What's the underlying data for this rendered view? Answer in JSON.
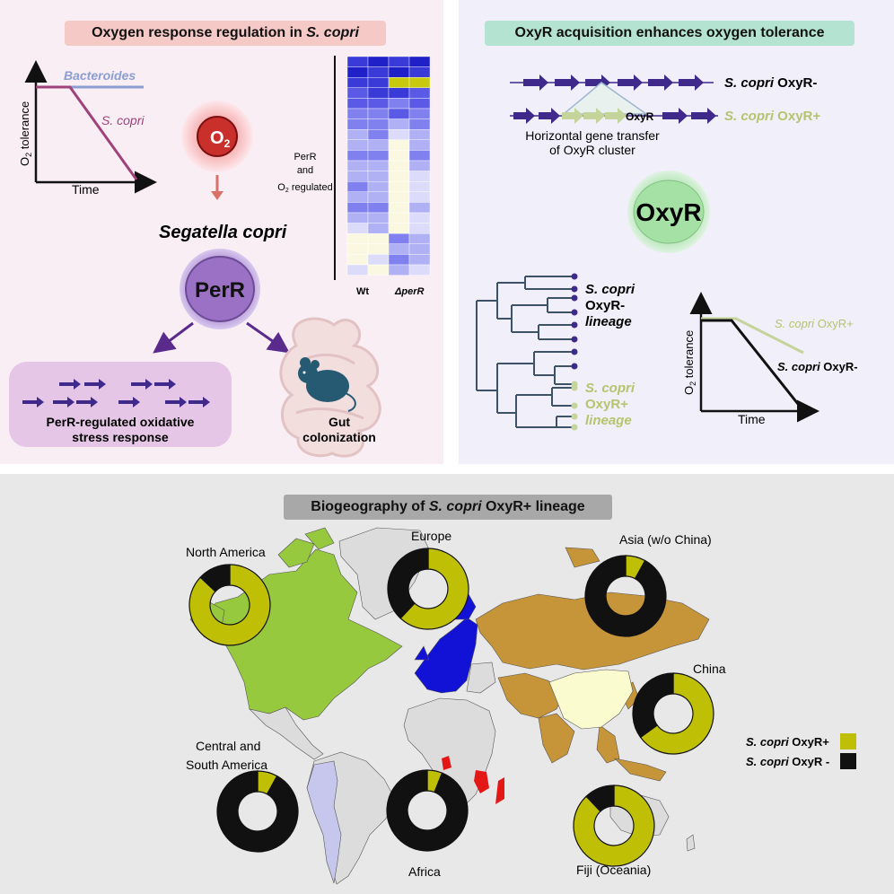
{
  "panel_a": {
    "title": "Oxygen response regulation in ",
    "title_italic": "S. copri",
    "graph": {
      "ylabel": "O2 tolerance",
      "xlabel": "Time",
      "line1": "Bacteroides",
      "line2": "S. copri"
    },
    "o2_label": "O2",
    "organism": "Segatella copri",
    "regulator": "PerR",
    "heatmap_label_1": "PerR",
    "heatmap_label_2": "and",
    "heatmap_label_3": "O2 regulated",
    "heatmap_col_1": "Wt",
    "heatmap_col_2": "ΔperR",
    "stress_box_line1": "PerR-regulated oxidative",
    "stress_box_line2": "stress response",
    "gut_line1": "Gut",
    "gut_line2": "colonization"
  },
  "panel_b": {
    "title": "OxyR acquisition enhances oxygen tolerance",
    "operon_minus": "S. copri OxyR-",
    "operon_plus": "S. copri OxyR+",
    "oxyr_gene": "OxyR",
    "hgt_line1": "Horizontal gene transfer",
    "hgt_line2": "of OxyR cluster",
    "oxyr_circle": "OxyR",
    "tree_minus_1": "S. copri",
    "tree_minus_2": "OxyR-",
    "tree_minus_3": "lineage",
    "tree_plus_1": "S. copri",
    "tree_plus_2": "OxyR+",
    "tree_plus_3": "lineage",
    "graph": {
      "ylabel": "O2 tolerance",
      "xlabel": "Time",
      "line_plus": "S. copri OxyR+",
      "line_minus": "S. copri OxyR-"
    }
  },
  "panel_c": {
    "title": "Biogeography of S. copri OxyR+ lineage",
    "regions": [
      {
        "name": "North America",
        "oxyr_plus_fraction": 0.87
      },
      {
        "name": "Europe",
        "oxyr_plus_fraction": 0.62
      },
      {
        "name": "Asia (w/o China)",
        "oxyr_plus_fraction": 0.08
      },
      {
        "name": "China",
        "oxyr_plus_fraction": 0.65
      },
      {
        "name": "Central and South America",
        "oxyr_plus_fraction": 0.08
      },
      {
        "name": "Africa",
        "oxyr_plus_fraction": 0.06
      },
      {
        "name": "Fiji (Oceania)",
        "oxyr_plus_fraction": 0.88
      }
    ],
    "legend": [
      {
        "label": "S. copri OxyR+",
        "color": "#bfbf06"
      },
      {
        "label": "S. copri OxyR -",
        "color": "#111111"
      }
    ]
  },
  "colors": {
    "oxyr_plus": "#bfbf06",
    "oxyr_minus": "#111111",
    "gene_arrow": "#3f2a8c",
    "light_green_arrow": "#c4d49a",
    "north_america": "#97c93f",
    "europe": "#1212d6",
    "asia": "#c69439",
    "china": "#fbfbd0",
    "south_america": "#c7c7ee",
    "africa_highlight": "#e41717"
  }
}
